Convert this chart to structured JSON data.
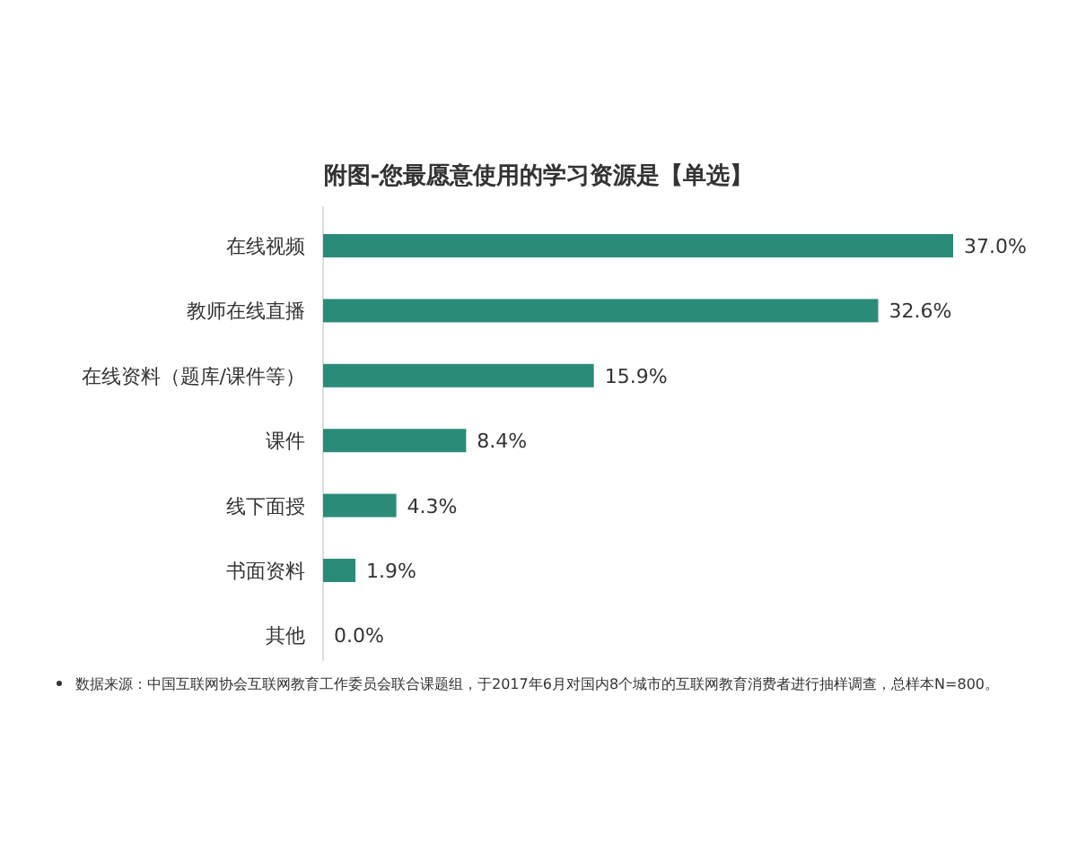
{
  "chart_data": {
    "type": "bar",
    "orientation": "horizontal",
    "title": "附图-您最愿意使用的学习资源是【单选】",
    "categories": [
      "在线视频",
      "教师在线直播",
      "在线资料（题库/课件等）",
      "课件",
      "线下面授",
      "书面资料",
      "其他"
    ],
    "values": [
      37.0,
      32.6,
      15.9,
      8.4,
      4.3,
      1.9,
      0.0
    ],
    "value_labels": [
      "37.0%",
      "32.6%",
      "15.9%",
      "8.4%",
      "4.3%",
      "1.9%",
      "0.0%"
    ],
    "color": "#2a8c78",
    "annotations": [
      "数据来源：中国互联网协会互联网教育工作委员会联合课题组，于2017年6月对国内8个城市的互联网教育消费者进行抽样调查，总样本N=800。"
    ]
  }
}
